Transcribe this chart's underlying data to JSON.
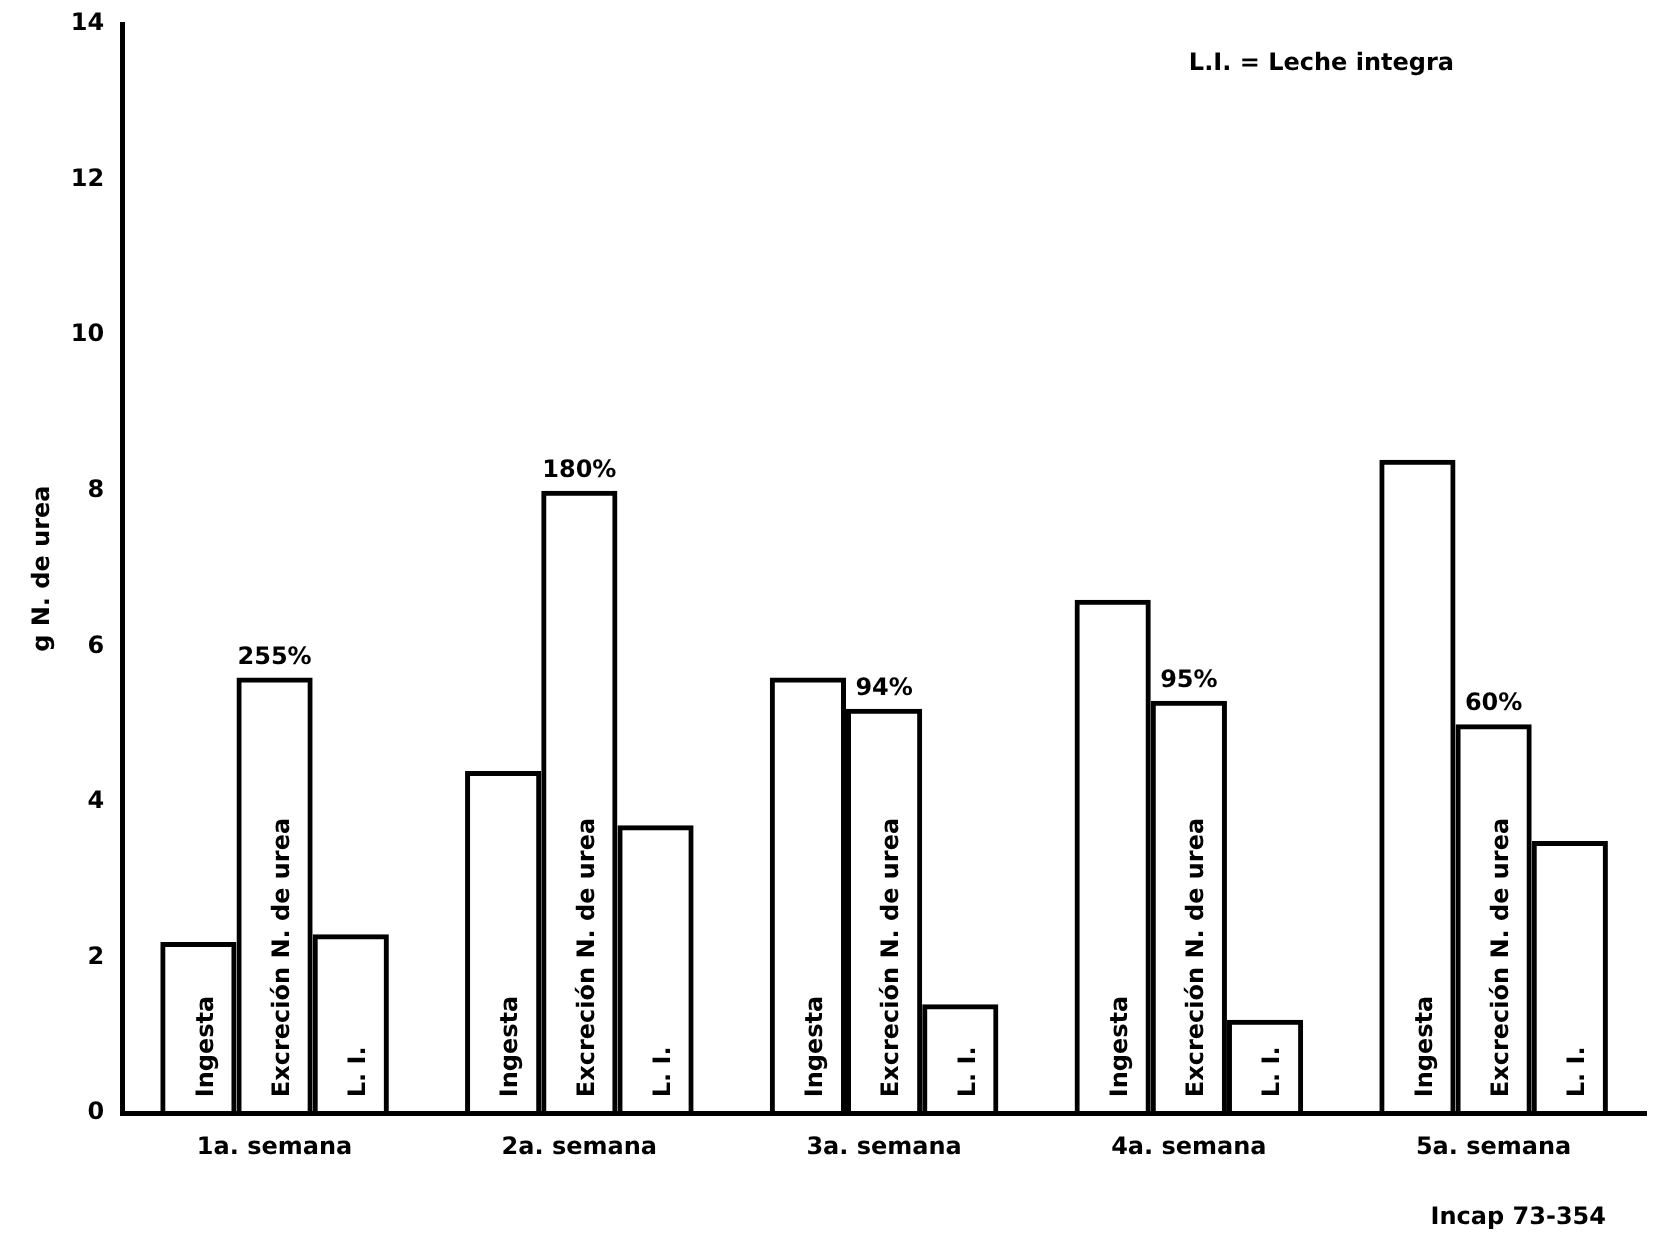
{
  "chart_data": {
    "type": "bar",
    "ylabel": "g N. de urea",
    "categories": [
      "1a. semana",
      "2a. semana",
      "3a. semana",
      "4a. semana",
      "5a. semana"
    ],
    "series": [
      {
        "name": "Ingesta",
        "color": "#000000",
        "values": [
          2.2,
          4.4,
          5.6,
          6.6,
          8.4
        ]
      },
      {
        "name": "Excreción N. de urea",
        "color": "#000000",
        "values": [
          5.6,
          8.0,
          5.2,
          5.3,
          5.0
        ]
      },
      {
        "name": "L. I.",
        "color": "#000000",
        "values": [
          2.3,
          3.7,
          1.4,
          1.2,
          3.5
        ]
      }
    ],
    "ylim": [
      0,
      14
    ],
    "yticks": [
      0,
      2,
      4,
      6,
      8,
      10,
      12,
      14
    ],
    "grid": false,
    "legend": false,
    "annotations": [
      {
        "text": "255%",
        "x": "1a. semana",
        "y": 5.6
      },
      {
        "text": "180%",
        "x": "2a. semana",
        "y": 8.0
      },
      {
        "text": "94%",
        "x": "3a. semana",
        "y": 5.2
      },
      {
        "text": "95%",
        "x": "4a. semana",
        "y": 5.3
      },
      {
        "text": "60%",
        "x": "5a. semana",
        "y": 5.0
      },
      "L.I. = Leche integra",
      "Incap 73-354"
    ]
  }
}
